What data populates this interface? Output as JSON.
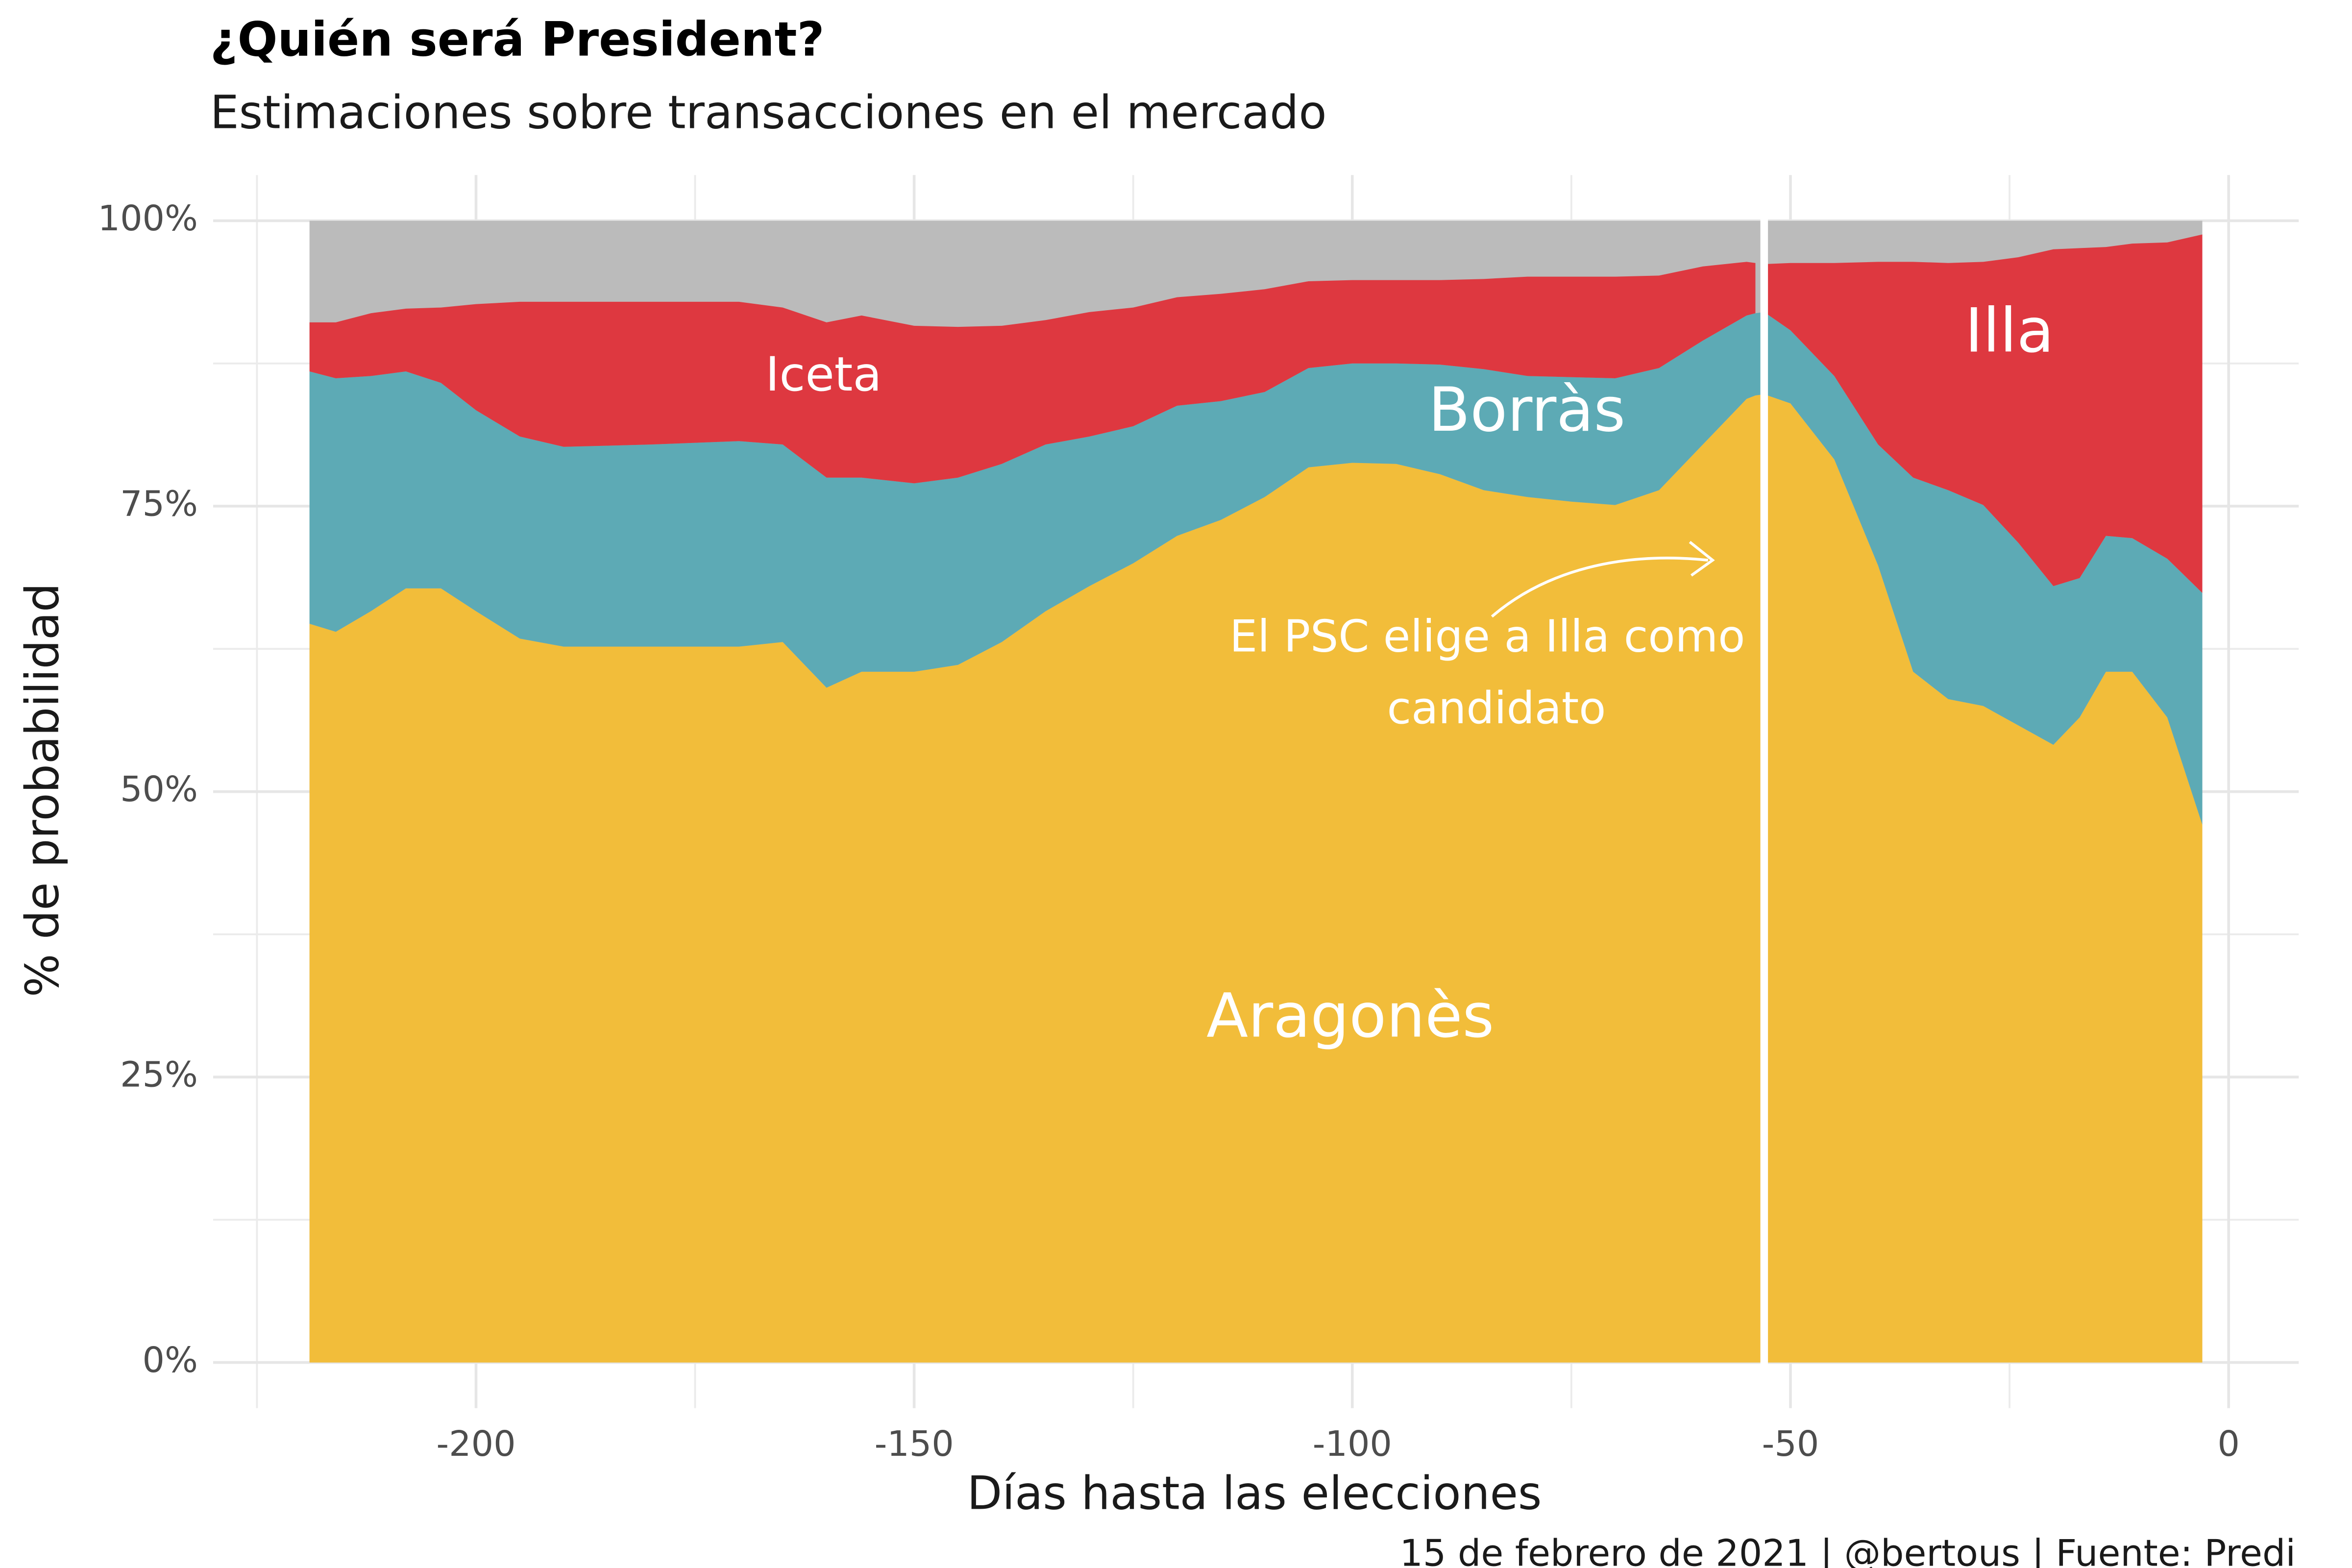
{
  "chart_data": {
    "type": "area",
    "stacked": true,
    "title": "¿Quién será President?",
    "subtitle": "Estimaciones sobre transacciones en el mercado",
    "x_label": "Días hasta las elecciones",
    "y_label": "% de probabilidad",
    "caption": "15 de febrero de 2021 | @bertous | Fuente: Predi",
    "x": [
      -219,
      -216,
      -212,
      -208,
      -204,
      -200,
      -195,
      -190,
      -180,
      -170,
      -165,
      -160,
      -156,
      -150,
      -145,
      -140,
      -135,
      -130,
      -125,
      -120,
      -115,
      -110,
      -105,
      -100,
      -95,
      -90,
      -85,
      -80,
      -75,
      -70,
      -65,
      -60,
      -55,
      -54,
      -53,
      -50,
      -45,
      -40,
      -36,
      -32,
      -28,
      -24,
      -20,
      -17,
      -14,
      -11,
      -7,
      -3
    ],
    "series": [
      {
        "name": "Aragonès",
        "color": "#f2bd3a",
        "values": [
          64.7,
          64.0,
          65.8,
          67.8,
          67.8,
          65.8,
          63.4,
          62.7,
          62.7,
          62.7,
          63.1,
          59.1,
          60.5,
          60.5,
          61.1,
          63.1,
          65.8,
          68.0,
          70.0,
          72.4,
          73.8,
          75.8,
          78.4,
          78.8,
          78.7,
          77.8,
          76.4,
          75.8,
          75.4,
          75.1,
          76.4,
          80.4,
          84.4,
          84.7,
          84.8,
          84.0,
          79.1,
          69.8,
          60.5,
          58.1,
          57.5,
          55.8,
          54.1,
          56.5,
          60.5,
          60.5,
          56.5,
          47.1
        ]
      },
      {
        "name": "Borràs",
        "color": "#5daab5",
        "values": [
          22.1,
          22.2,
          20.6,
          19.0,
          18.0,
          17.6,
          17.7,
          17.5,
          17.7,
          18.0,
          17.3,
          18.4,
          17.0,
          16.5,
          16.4,
          15.6,
          14.6,
          13.1,
          12.0,
          11.4,
          10.4,
          9.2,
          8.7,
          8.7,
          8.8,
          9.6,
          10.6,
          10.6,
          10.9,
          11.1,
          10.7,
          9.1,
          7.3,
          7.2,
          7.2,
          6.4,
          7.3,
          10.6,
          17.0,
          18.3,
          17.6,
          16.0,
          13.9,
          12.2,
          11.9,
          11.7,
          13.9,
          20.3
        ]
      },
      {
        "name": "Iceta",
        "color": "#de3840",
        "values": [
          4.3,
          4.9,
          5.5,
          5.5,
          6.6,
          9.3,
          11.8,
          12.7,
          12.5,
          12.2,
          12.0,
          13.6,
          14.2,
          13.8,
          13.2,
          12.1,
          10.9,
          10.9,
          10.4,
          9.5,
          9.4,
          9.0,
          7.6,
          7.3,
          7.3,
          7.4,
          7.9,
          8.7,
          8.8,
          8.9,
          8.1,
          6.5,
          4.7,
          4.4,
          null,
          null,
          null,
          null,
          null,
          null,
          null,
          null,
          null,
          null,
          null,
          null,
          null,
          null
        ]
      },
      {
        "name": "Illa",
        "color": "#de3840",
        "values": [
          null,
          null,
          null,
          null,
          null,
          null,
          null,
          null,
          null,
          null,
          null,
          null,
          null,
          null,
          null,
          null,
          null,
          null,
          null,
          null,
          null,
          null,
          null,
          null,
          null,
          null,
          null,
          null,
          null,
          null,
          null,
          null,
          null,
          null,
          4.2,
          5.9,
          9.9,
          16.0,
          18.9,
          19.9,
          21.3,
          25.0,
          29.5,
          28.9,
          25.3,
          25.8,
          27.7,
          31.4
        ]
      }
    ],
    "rest_color": "#bbbbbb",
    "vline_x": -53,
    "annotation": {
      "lines": [
        "El PSC elige a Illa como",
        "candidato"
      ]
    },
    "xlim": [
      -230,
      8
    ],
    "xticks": [
      -200,
      -150,
      -100,
      -50,
      0
    ],
    "xminor": [
      -225,
      -175,
      -125,
      -75,
      -25
    ],
    "ylim": [
      -4,
      104
    ],
    "yticks": [
      {
        "value": 0,
        "label": "0%"
      },
      {
        "value": 25,
        "label": "25%"
      },
      {
        "value": 50,
        "label": "50%"
      },
      {
        "value": 75,
        "label": "75%"
      },
      {
        "value": 100,
        "label": "100%"
      }
    ],
    "yminor": [
      12.5,
      37.5,
      62.5,
      87.5
    ],
    "grid": true
  }
}
